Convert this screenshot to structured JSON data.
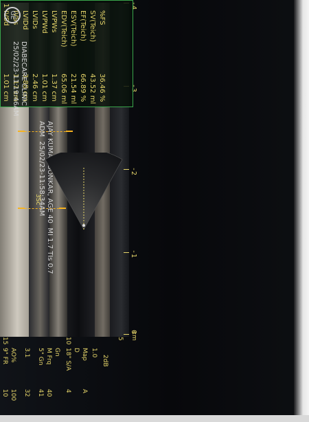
{
  "device": {
    "brand_logo": "GE",
    "clinic_name": "DIABECARE CLINIC",
    "exam_datetime": "25/02/23-11:19:46AM",
    "patient_line": "AJAY KUMAR SONKAR, AGE 40",
    "adm_label": "ADM",
    "adm_datetime": "25/02/23-11:58:34AM",
    "mi_ti": "MI 1.7  TIs 0.7",
    "probe_tag": "3Sc"
  },
  "measurements": [
    {
      "label": "IVSd",
      "value": "1.01 cm"
    },
    {
      "label": "IVSs",
      "value": "1.17 cm"
    },
    {
      "label": "LVIDd",
      "value": "3.88 cm"
    },
    {
      "label": "LVIDs",
      "value": "2.46 cm"
    },
    {
      "label": "LVPWd",
      "value": "1.01 cm"
    },
    {
      "label": "LVPWs",
      "value": "1.37 cm"
    },
    {
      "label": "EDV(Teich)",
      "value": "65.06 ml"
    },
    {
      "label": "ESV(Teich)",
      "value": "21.54 ml"
    },
    {
      "label": "EF(Teich)",
      "value": "66.89 %"
    },
    {
      "label": "SV(Teich)",
      "value": "43.52 ml"
    },
    {
      "label": "%FS",
      "value": "36.46 %"
    }
  ],
  "measurement_index": "1",
  "time_axis": {
    "labels": [
      "-4",
      "-3",
      "-2",
      "-1",
      "0"
    ]
  },
  "depth_axis": {
    "labels": [
      "5",
      "10",
      "15"
    ],
    "unit": "cm"
  },
  "settings_panel": [
    "9\" FR",
    "AO%",
    "3.1",
    "5\" Gn",
    "M Frq",
    "Gn",
    "18\" S/A",
    "D",
    "Map",
    "1.0"
  ],
  "settings_values": [
    "10",
    "100",
    "32",
    "41",
    "40",
    "4",
    "A"
  ],
  "dB_label": "2dB",
  "colors": {
    "measure_border": "#3aa64c",
    "text_yellow": "#e7d66a",
    "caliper": "#f6b21f"
  }
}
